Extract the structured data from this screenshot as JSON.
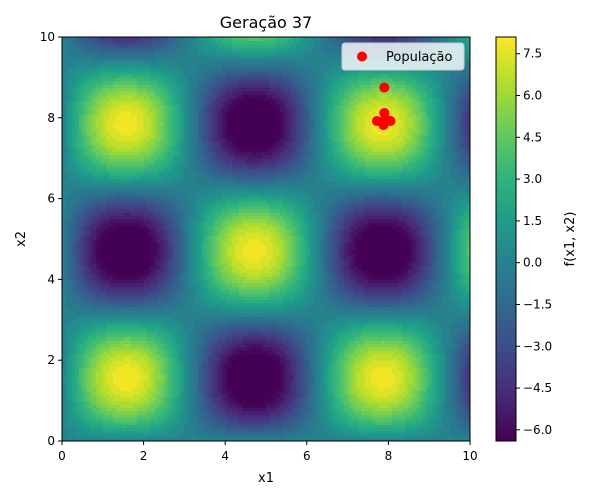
{
  "chart_data": {
    "type": "heatmap",
    "title": "Geração 37",
    "xlabel": "x1",
    "ylabel": "x2",
    "xlim": [
      0,
      10
    ],
    "ylim": [
      0,
      10
    ],
    "x_ticks": [
      0,
      2,
      4,
      6,
      8,
      10
    ],
    "y_ticks": [
      0,
      2,
      4,
      6,
      8,
      10
    ],
    "colormap": "viridis",
    "grid": false,
    "surface": {
      "description": "sinusoidal landscape f(x1, x2) = 8·sin(x1)·sin(x2) + noise-free, peaks near (7.9, 7.9)"
    },
    "colorbar": {
      "label": "f(x1, x2)",
      "range": [
        -6.4,
        8.1
      ],
      "ticks": [
        -6.0,
        -4.5,
        -3.0,
        -1.5,
        0.0,
        1.5,
        3.0,
        4.5,
        6.0,
        7.5
      ],
      "tick_labels": [
        "−6.0",
        "−4.5",
        "−3.0",
        "−1.5",
        "0.0",
        "1.5",
        "3.0",
        "4.5",
        "6.0",
        "7.5"
      ]
    },
    "series": [
      {
        "name": "População",
        "kind": "scatter",
        "color": "#ff0000",
        "points": [
          {
            "x": 7.9,
            "y": 8.75
          },
          {
            "x": 7.9,
            "y": 8.12
          },
          {
            "x": 7.72,
            "y": 7.92
          },
          {
            "x": 7.92,
            "y": 7.97
          },
          {
            "x": 8.05,
            "y": 7.92
          },
          {
            "x": 7.88,
            "y": 7.82
          }
        ]
      }
    ],
    "legend": {
      "position": "top-right",
      "entries": [
        "População"
      ]
    }
  }
}
